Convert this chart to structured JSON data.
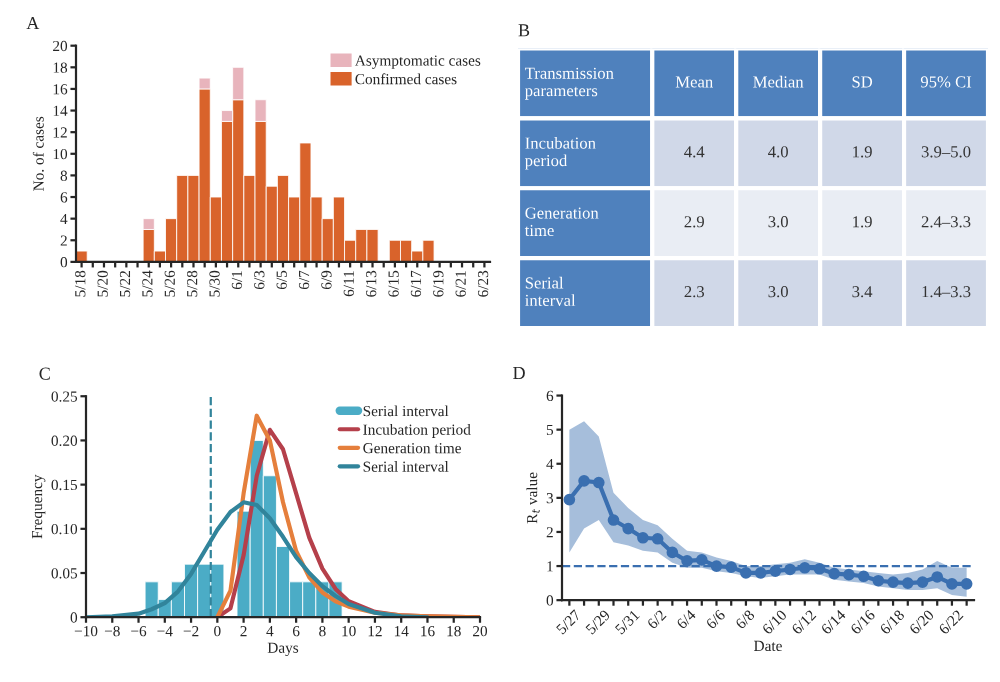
{
  "chart_data": [
    {
      "type": "bar",
      "title": "A",
      "ylabel": "No. of cases",
      "stacked": true,
      "legend": "top right",
      "categories": [
        "5/18",
        null,
        "5/20",
        null,
        "5/22",
        null,
        "5/24",
        null,
        "5/26",
        null,
        "5/28",
        null,
        "5/30",
        null,
        "6/1",
        null,
        "6/3",
        null,
        "6/5",
        null,
        "6/7",
        null,
        "6/9",
        null,
        "6/11",
        null,
        "6/13",
        null,
        "6/15",
        null,
        "6/17",
        null,
        "6/19",
        null,
        "6/21",
        null,
        "6/23"
      ],
      "series": [
        {
          "name": "Confirmed cases",
          "color": "#d9632b",
          "values": [
            1,
            0,
            0,
            0,
            0,
            0,
            3,
            1,
            4,
            8,
            8,
            16,
            6,
            13,
            15,
            8,
            13,
            7,
            8,
            6,
            11,
            6,
            4,
            6,
            2,
            3,
            3,
            0,
            2,
            2,
            1,
            2,
            0,
            0,
            0,
            0,
            0
          ]
        },
        {
          "name": "Asymptomatic cases",
          "color": "#e8b4bc",
          "values": [
            0,
            0,
            0,
            0,
            0,
            0,
            1,
            0,
            0,
            0,
            0,
            1,
            0,
            1,
            3,
            0,
            2,
            0,
            0,
            0,
            0,
            0,
            0,
            0,
            0,
            0,
            0,
            0,
            0,
            0,
            0,
            0,
            0,
            0,
            0,
            0,
            0
          ]
        }
      ],
      "ylim": [
        0,
        20
      ],
      "yticks": [
        0,
        2,
        4,
        6,
        8,
        10,
        12,
        14,
        16,
        18,
        20
      ]
    },
    {
      "type": "other",
      "title": "B",
      "categories": [
        "Transmission parameters",
        "Mean",
        "Median",
        "SD",
        "95% CI"
      ],
      "y_categories": [
        "Incubation period",
        "Generation time",
        "Serial interval"
      ],
      "cell_labels": [
        [
          "4.4",
          "4.0",
          "1.9",
          "3.9–5.0"
        ],
        [
          "2.9",
          "3.0",
          "1.9",
          "2.4–3.3"
        ],
        [
          "2.3",
          "3.0",
          "3.4",
          "1.4–3.3"
        ]
      ]
    },
    {
      "type": "histogram",
      "title": "C",
      "xlabel": "Days",
      "ylabel": "Frequency",
      "legend": "top right",
      "series": [
        {
          "type": "histogram",
          "name": "Serial interval",
          "color": "#4bacc6",
          "bins": [
            -5.5,
            -4.5,
            -3.5,
            -2.5,
            -1.5,
            -0.5,
            0.5,
            1.5,
            2.5,
            3.5,
            4.5,
            5.5,
            6.5,
            7.5,
            8.5,
            9.5
          ],
          "values": [
            0.04,
            0.02,
            0.04,
            0.06,
            0.06,
            0.06,
            null,
            0.12,
            0.2,
            0.16,
            0.08,
            0.04,
            0.04,
            0.04,
            0.04
          ]
        },
        {
          "type": "line",
          "name": "Incubation period",
          "color": "#b5404b",
          "x": [
            0,
            1,
            2,
            3,
            4,
            5,
            6,
            7,
            8,
            9,
            10,
            12,
            14,
            16,
            20
          ],
          "values": [
            0,
            0.01,
            0.07,
            0.16,
            0.212,
            0.19,
            0.14,
            0.09,
            0.055,
            0.032,
            0.018,
            0.006,
            0.002,
            0.001,
            0
          ]
        },
        {
          "type": "line",
          "name": "Generation time",
          "color": "#e57f3c",
          "x": [
            0,
            1,
            2,
            3,
            4,
            5,
            6,
            7,
            8,
            9,
            10,
            12,
            14,
            16,
            20
          ],
          "values": [
            0,
            0.03,
            0.14,
            0.228,
            0.2,
            0.13,
            0.075,
            0.045,
            0.028,
            0.018,
            0.012,
            0.005,
            0.002,
            0.001,
            0
          ]
        },
        {
          "type": "line",
          "name": "Serial interval",
          "color": "#31849b",
          "x": [
            -10,
            -8,
            -6,
            -5,
            -4,
            -3,
            -2,
            -1,
            0,
            1,
            2,
            3,
            4,
            5,
            6,
            7,
            8,
            9,
            10,
            12,
            14,
            16
          ],
          "values": [
            0,
            0.001,
            0.004,
            0.009,
            0.016,
            0.029,
            0.049,
            0.074,
            0.099,
            0.119,
            0.13,
            0.127,
            0.112,
            0.091,
            0.068,
            0.05,
            0.035,
            0.024,
            0.015,
            0.005,
            0.001,
            0
          ]
        }
      ],
      "ref_lines": [
        {
          "axis": "x",
          "value": -0.5,
          "color": "#31849b",
          "line_style": "dashed"
        }
      ],
      "xlim": [
        -10,
        20
      ],
      "xticks": [
        -10,
        -8,
        -6,
        -4,
        -2,
        0,
        2,
        4,
        6,
        8,
        10,
        12,
        14,
        16,
        18,
        20
      ],
      "ylim": [
        0,
        0.25
      ],
      "yticks": [
        0,
        0.05,
        {
          "value": 0.1,
          "label": "0.10"
        },
        0.15,
        {
          "value": 0.2,
          "label": "0.20"
        },
        0.25
      ]
    },
    {
      "type": "line",
      "title": "D",
      "xlabel": "Date",
      "ylabel": "R$_{t}$ value",
      "marker": "circle",
      "categories": [
        "5/27",
        null,
        "5/29",
        null,
        "5/31",
        null,
        "6/2",
        null,
        "6/4",
        null,
        "6/6",
        null,
        "6/8",
        null,
        "6/10",
        null,
        "6/12",
        null,
        "6/14",
        null,
        "6/16",
        null,
        "6/18",
        null,
        "6/20",
        null,
        "6/22",
        null
      ],
      "series": [
        {
          "color": "#3a6fb0",
          "values": [
            2.95,
            3.5,
            3.45,
            2.35,
            2.1,
            1.83,
            1.8,
            1.4,
            1.15,
            1.18,
            1.0,
            0.97,
            0.8,
            0.8,
            0.85,
            0.9,
            0.95,
            0.92,
            0.78,
            0.75,
            0.7,
            0.57,
            0.53,
            0.5,
            0.53,
            0.68,
            0.48,
            0.48
          ],
          "lower": [
            1.4,
            2.1,
            2.35,
            1.7,
            1.6,
            1.45,
            1.4,
            1.1,
            0.95,
            0.95,
            0.85,
            0.8,
            0.7,
            0.65,
            0.7,
            0.75,
            0.75,
            0.75,
            0.6,
            0.55,
            0.5,
            0.4,
            0.35,
            0.3,
            0.3,
            0.35,
            0.15,
            0.1
          ],
          "upper": [
            5.0,
            5.25,
            4.8,
            3.15,
            2.7,
            2.35,
            2.2,
            1.8,
            1.45,
            1.4,
            1.25,
            1.15,
            1.0,
            1.0,
            1.05,
            1.1,
            1.2,
            1.1,
            0.95,
            0.9,
            0.85,
            0.8,
            0.75,
            0.8,
            0.9,
            1.15,
            0.95,
            0.95
          ]
        }
      ],
      "ref_lines": [
        {
          "axis": "y",
          "value": 1,
          "color": "#3a6fb0",
          "line_style": "dashed"
        }
      ],
      "ylim": [
        0,
        6
      ],
      "yticks": [
        0,
        1,
        2,
        3,
        4,
        5,
        6
      ]
    }
  ]
}
